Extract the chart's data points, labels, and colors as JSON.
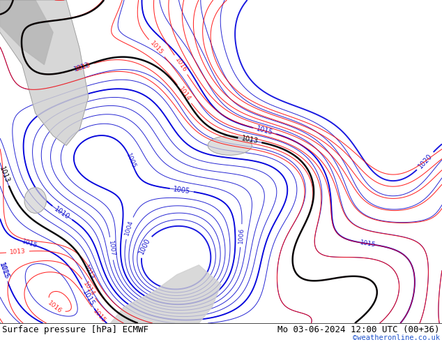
{
  "title_left": "Surface pressure [hPa] ECMWF",
  "title_right": "Mo 03-06-2024 12:00 UTC (00+36)",
  "watermark": "©weatheronline.co.uk",
  "bg_color": "#c8e6a0",
  "fig_width": 6.34,
  "fig_height": 4.9,
  "dpi": 100,
  "bottom_bar_height": 0.055,
  "title_fontsize": 9,
  "watermark_color": "#2255cc",
  "watermark_fontsize": 7.5
}
